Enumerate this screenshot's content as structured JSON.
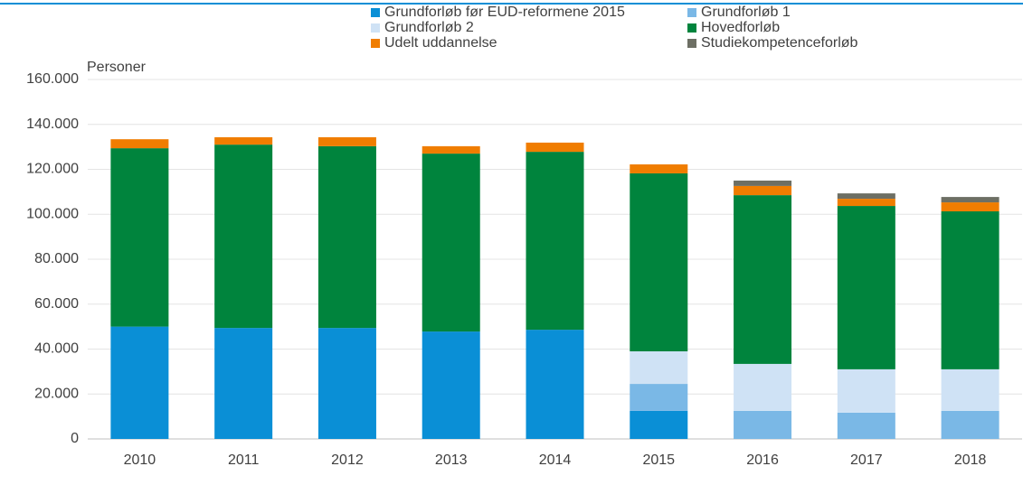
{
  "chart_data": {
    "type": "stacked_bar",
    "y_label": "Personer",
    "categories": [
      "2010",
      "2011",
      "2012",
      "2013",
      "2014",
      "2015",
      "2016",
      "2017",
      "2018"
    ],
    "series": [
      {
        "name": "Grundforløb før EUD-reformene 2015",
        "color": "#0a8fd6",
        "values": [
          50000,
          49400,
          49400,
          47800,
          48600,
          12500,
          0,
          0,
          0
        ]
      },
      {
        "name": "Grundforløb 1",
        "color": "#7ab8e6",
        "values": [
          0,
          0,
          0,
          0,
          0,
          12000,
          12500,
          11700,
          12500
        ]
      },
      {
        "name": "Grundforløb 2",
        "color": "#cfe2f5",
        "values": [
          0,
          0,
          0,
          0,
          0,
          14500,
          20900,
          19300,
          18500
        ]
      },
      {
        "name": "Hovedforløb",
        "color": "#00843d",
        "values": [
          79400,
          81600,
          80900,
          79200,
          79200,
          79200,
          75100,
          72700,
          70300
        ]
      },
      {
        "name": "Udelt uddannelse",
        "color": "#f07d00",
        "values": [
          4000,
          3300,
          4000,
          3300,
          4100,
          4000,
          4100,
          3200,
          4000
        ]
      },
      {
        "name": "Studiekompetenceforløb",
        "color": "#6d6f64",
        "values": [
          0,
          0,
          0,
          0,
          0,
          0,
          2400,
          2400,
          2400
        ]
      }
    ],
    "ylim": [
      0,
      160000
    ],
    "yticks": [
      0,
      {
        "value": 20000,
        "label": "20.000"
      },
      {
        "value": 40000,
        "label": "40.000"
      },
      {
        "value": 60000,
        "label": "60.000"
      },
      {
        "value": 80000,
        "label": "80.000"
      },
      {
        "value": 100000,
        "label": "100.000"
      },
      {
        "value": 120000,
        "label": "120.000"
      },
      {
        "value": 140000,
        "label": "140.000"
      },
      {
        "value": 160000,
        "label": "160.000"
      }
    ],
    "grid": true
  }
}
